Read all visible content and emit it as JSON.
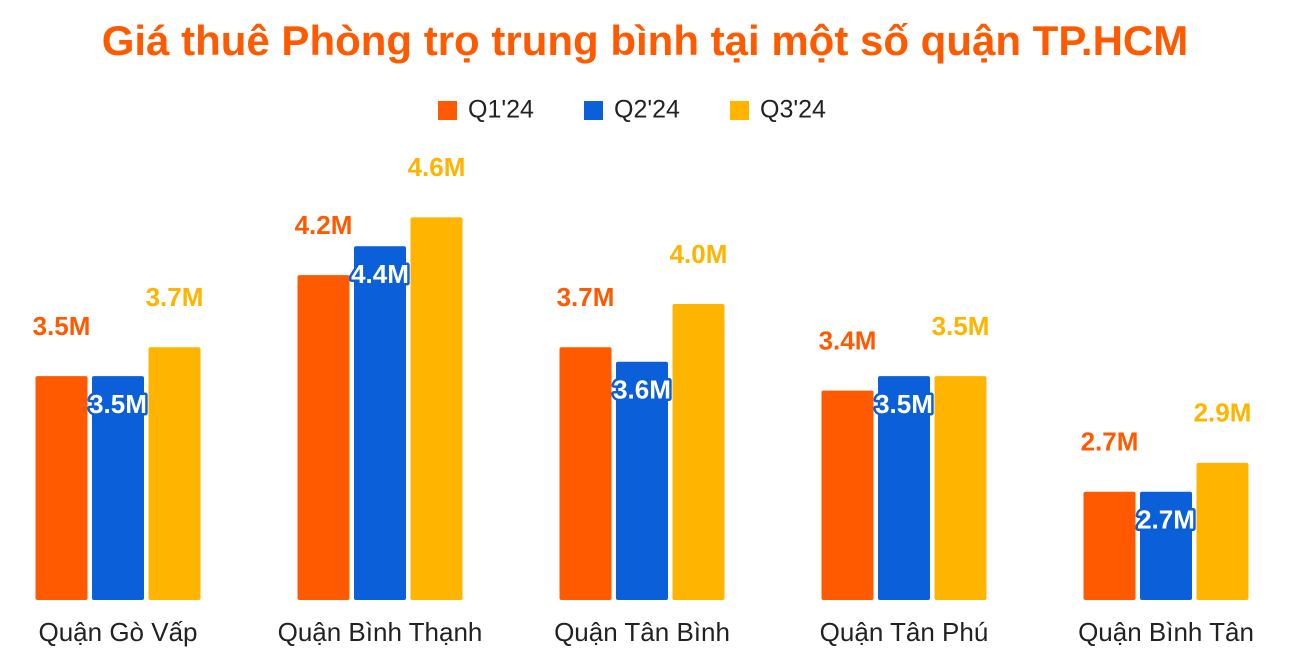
{
  "chart_data": {
    "type": "bar",
    "title": "Giá thuê Phòng trọ trung bình tại một số quận TP.HCM",
    "categories": [
      "Quận Gò Vấp",
      "Quận Bình Thạnh",
      "Quận Tân Bình",
      "Quận Tân Phú",
      "Quận Bình Tân"
    ],
    "series": [
      {
        "name": "Q1'24",
        "color": "#ff5a00",
        "values": [
          3.5,
          4.2,
          3.7,
          3.4,
          2.7
        ],
        "value_labels": [
          "3.5M",
          "4.2M",
          "3.7M",
          "3.4M",
          "2.7M"
        ]
      },
      {
        "name": "Q2'24",
        "color": "#0b5fd8",
        "values": [
          3.5,
          4.4,
          3.6,
          3.5,
          2.7
        ],
        "value_labels": [
          "3.5M",
          "4.4M",
          "3.6M",
          "3.5M",
          "2.7M"
        ]
      },
      {
        "name": "Q3'24",
        "color": "#ffb400",
        "values": [
          3.7,
          4.6,
          4.0,
          3.5,
          2.9
        ],
        "value_labels": [
          "3.7M",
          "4.6M",
          "4.0M",
          "3.5M",
          "2.9M"
        ]
      }
    ],
    "ylim": [
      1.95,
      4.9
    ],
    "legend": "top"
  }
}
